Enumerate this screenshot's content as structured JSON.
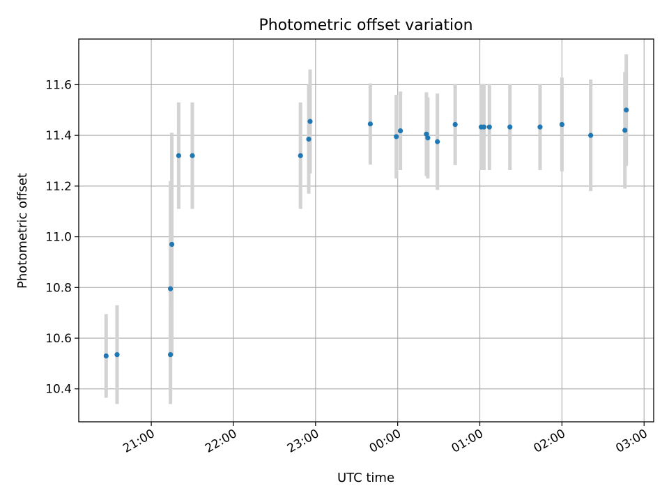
{
  "chart_data": {
    "type": "scatter",
    "title": "Photometric offset variation",
    "xlabel": "UTC time",
    "ylabel": "Photometric offset",
    "x_unit": "hours",
    "xlim": [
      "20:07",
      "03:07"
    ],
    "ylim": [
      10.27,
      11.78
    ],
    "x_ticks": [
      {
        "label": "21:00",
        "value": "21:00"
      },
      {
        "label": "22:00",
        "value": "22:00"
      },
      {
        "label": "23:00",
        "value": "23:00"
      },
      {
        "label": "00:00",
        "value": "00:00"
      },
      {
        "label": "01:00",
        "value": "01:00"
      },
      {
        "label": "02:00",
        "value": "02:00"
      },
      {
        "label": "03:00",
        "value": "03:00"
      }
    ],
    "y_ticks": [
      10.4,
      10.6,
      10.8,
      11.0,
      11.2,
      11.4,
      11.6
    ],
    "grid": true,
    "point_color": "#1f77b4",
    "errorbar_color": "#d3d3d3",
    "points": [
      {
        "t": "20:27",
        "y": 10.53,
        "err": 0.165
      },
      {
        "t": "20:35",
        "y": 10.535,
        "err": 0.195
      },
      {
        "t": "21:14",
        "y": 10.535,
        "err": 0.195
      },
      {
        "t": "21:14",
        "y": 10.795,
        "err": 0.425
      },
      {
        "t": "21:15",
        "y": 10.97,
        "err": 0.44
      },
      {
        "t": "21:20",
        "y": 11.32,
        "err": 0.21
      },
      {
        "t": "21:30",
        "y": 11.32,
        "err": 0.21
      },
      {
        "t": "22:49",
        "y": 11.32,
        "err": 0.21
      },
      {
        "t": "22:55",
        "y": 11.385,
        "err": 0.215
      },
      {
        "t": "22:56",
        "y": 11.455,
        "err": 0.205
      },
      {
        "t": "23:40",
        "y": 11.445,
        "err": 0.16
      },
      {
        "t": "23:59",
        "y": 11.395,
        "err": 0.165
      },
      {
        "t": "00:02",
        "y": 11.418,
        "err": 0.155
      },
      {
        "t": "00:21",
        "y": 11.405,
        "err": 0.165
      },
      {
        "t": "00:22",
        "y": 11.39,
        "err": 0.16
      },
      {
        "t": "00:29",
        "y": 11.375,
        "err": 0.19
      },
      {
        "t": "00:42",
        "y": 11.443,
        "err": 0.16
      },
      {
        "t": "01:01",
        "y": 11.433,
        "err": 0.17
      },
      {
        "t": "01:03",
        "y": 11.433,
        "err": 0.17
      },
      {
        "t": "01:07",
        "y": 11.433,
        "err": 0.17
      },
      {
        "t": "01:22",
        "y": 11.433,
        "err": 0.17
      },
      {
        "t": "01:44",
        "y": 11.433,
        "err": 0.17
      },
      {
        "t": "02:00",
        "y": 11.443,
        "err": 0.185
      },
      {
        "t": "02:21",
        "y": 11.4,
        "err": 0.22
      },
      {
        "t": "02:46",
        "y": 11.42,
        "err": 0.23
      },
      {
        "t": "02:47",
        "y": 11.5,
        "err": 0.22
      }
    ]
  }
}
